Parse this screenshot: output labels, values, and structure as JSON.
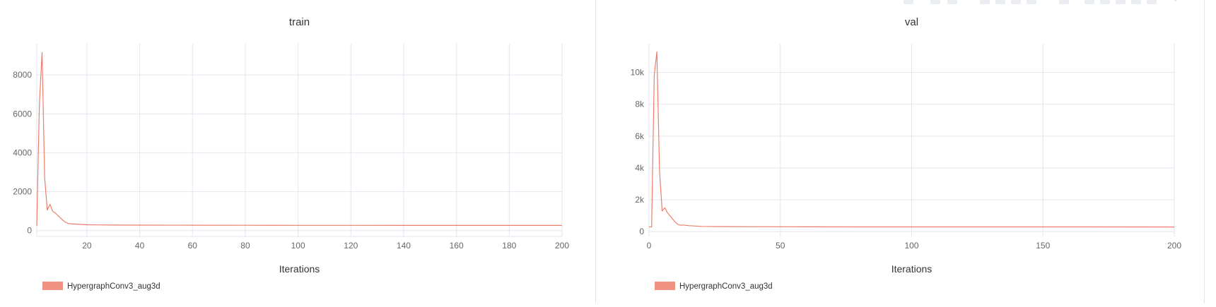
{
  "colors": {
    "series": "#ec7f6c",
    "grid": "#e3e6ef",
    "axis": "#666666",
    "title": "#333333"
  },
  "toolbar": {
    "icons": [
      "camera-icon",
      "zoom-icon",
      "pan-icon",
      "zoom-in-icon",
      "zoom-out-icon",
      "autoscale-icon",
      "home-icon",
      "more-icon",
      "spike-lines-icon",
      "compare-icon",
      "closest-icon",
      "table-icon",
      "download-icon",
      "expand-icon"
    ]
  },
  "chart_data": [
    {
      "type": "line",
      "title": "train",
      "xlabel": "Iterations",
      "ylabel": "",
      "xlim": [
        1,
        200
      ],
      "ylim": [
        -300,
        9600
      ],
      "xticks": [
        20,
        40,
        60,
        80,
        100,
        120,
        140,
        160,
        180,
        200
      ],
      "xtick_labels": [
        "20",
        "40",
        "60",
        "80",
        "100",
        "120",
        "140",
        "160",
        "180",
        "200"
      ],
      "yticks": [
        0,
        2000,
        4000,
        6000,
        8000
      ],
      "ytick_labels": [
        "0",
        "2000",
        "4000",
        "6000",
        "8000"
      ],
      "grid": true,
      "legend": "bottom-left",
      "series": [
        {
          "name": "HypergraphConv3_aug3d",
          "x": [
            1,
            2,
            3,
            4,
            5,
            6,
            7,
            8,
            9,
            10,
            11,
            12,
            13,
            14,
            16,
            18,
            20,
            25,
            30,
            40,
            60,
            80,
            100,
            120,
            140,
            160,
            180,
            200
          ],
          "y": [
            250,
            6500,
            9150,
            2700,
            1050,
            1350,
            1000,
            900,
            780,
            650,
            520,
            420,
            360,
            350,
            330,
            315,
            300,
            290,
            285,
            280,
            275,
            272,
            270,
            268,
            267,
            266,
            265,
            264
          ]
        }
      ]
    },
    {
      "type": "line",
      "title": "val",
      "xlabel": "Iterations",
      "ylabel": "",
      "xlim": [
        0,
        200
      ],
      "ylim": [
        -300,
        11800
      ],
      "xticks": [
        0,
        50,
        100,
        150,
        200
      ],
      "xtick_labels": [
        "0",
        "50",
        "100",
        "150",
        "200"
      ],
      "yticks": [
        0,
        2000,
        4000,
        6000,
        8000,
        10000
      ],
      "ytick_labels": [
        "0",
        "2k",
        "4k",
        "6k",
        "8k",
        "10k"
      ],
      "grid": true,
      "legend": "bottom-left",
      "series": [
        {
          "name": "HypergraphConv3_aug3d",
          "x": [
            0,
            1,
            2,
            3,
            4,
            5,
            6,
            7,
            8,
            9,
            10,
            11,
            12,
            13,
            15,
            20,
            25,
            30,
            40,
            60,
            80,
            100,
            120,
            150,
            200
          ],
          "y": [
            300,
            300,
            9800,
            11300,
            3800,
            1300,
            1500,
            1200,
            1000,
            800,
            600,
            450,
            400,
            420,
            380,
            330,
            320,
            315,
            310,
            305,
            300,
            300,
            298,
            297,
            296
          ]
        }
      ]
    }
  ]
}
